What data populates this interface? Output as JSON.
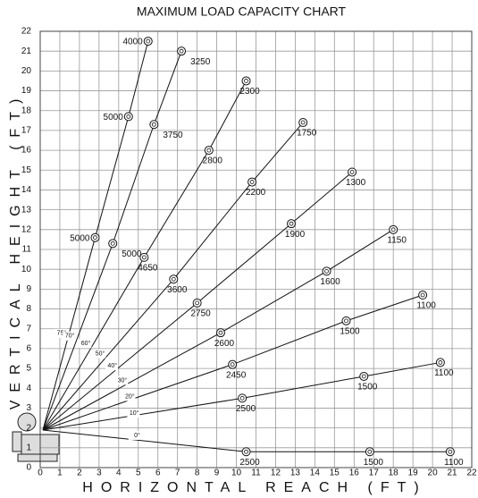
{
  "chart_data": {
    "type": "line",
    "title": "MAXIMUM LOAD CAPACITY CHART",
    "x_label": "HORIZONTAL REACH (FT)",
    "y_label": "VERTICAL HEIGHT (FT)",
    "xlim": [
      0,
      22
    ],
    "ylim": [
      0,
      22
    ],
    "xticks": [
      0,
      1,
      2,
      3,
      4,
      5,
      6,
      7,
      8,
      9,
      10,
      11,
      12,
      13,
      14,
      15,
      16,
      17,
      18,
      19,
      20,
      21,
      22
    ],
    "yticks": [
      0,
      1,
      2,
      3,
      4,
      5,
      6,
      7,
      8,
      9,
      10,
      11,
      12,
      13,
      14,
      15,
      16,
      17,
      18,
      19,
      20,
      21,
      22
    ],
    "grid": true,
    "color": "#111111",
    "series": [
      {
        "name": "75°",
        "x": [
          2.8,
          4.5,
          5.5
        ],
        "values": [
          11.6,
          17.7,
          21.5
        ],
        "loads": [
          5000,
          5000,
          4000
        ]
      },
      {
        "name": "70°",
        "x": [
          3.7,
          5.8,
          7.2
        ],
        "values": [
          11.3,
          17.3,
          21.0
        ],
        "loads": [
          5000,
          3750,
          3250
        ]
      },
      {
        "name": "60°",
        "x": [
          5.3,
          8.6,
          10.5
        ],
        "values": [
          10.6,
          16.0,
          19.5
        ],
        "loads": [
          4650,
          2800,
          2300
        ]
      },
      {
        "name": "50°",
        "x": [
          6.8,
          10.8,
          13.4
        ],
        "values": [
          9.5,
          14.4,
          17.4
        ],
        "loads": [
          3600,
          2200,
          1750
        ]
      },
      {
        "name": "40°",
        "x": [
          8.0,
          12.8,
          15.9
        ],
        "values": [
          8.3,
          12.3,
          14.9
        ],
        "loads": [
          2750,
          1900,
          1300
        ]
      },
      {
        "name": "30°",
        "x": [
          9.2,
          14.6,
          18.0
        ],
        "values": [
          6.8,
          9.9,
          12.0
        ],
        "loads": [
          2600,
          1600,
          1150
        ]
      },
      {
        "name": "20°",
        "x": [
          9.8,
          15.6,
          19.5
        ],
        "values": [
          5.2,
          7.4,
          8.7
        ],
        "loads": [
          2450,
          1500,
          1100
        ]
      },
      {
        "name": "10°",
        "x": [
          10.3,
          16.5,
          20.4
        ],
        "values": [
          3.5,
          4.6,
          5.3
        ],
        "loads": [
          2500,
          1500,
          1100
        ]
      },
      {
        "name": "0°",
        "x": [
          10.5,
          16.8,
          20.9
        ],
        "values": [
          0.8,
          0.8,
          0.8
        ],
        "loads": [
          2500,
          1500,
          1100
        ]
      }
    ]
  }
}
